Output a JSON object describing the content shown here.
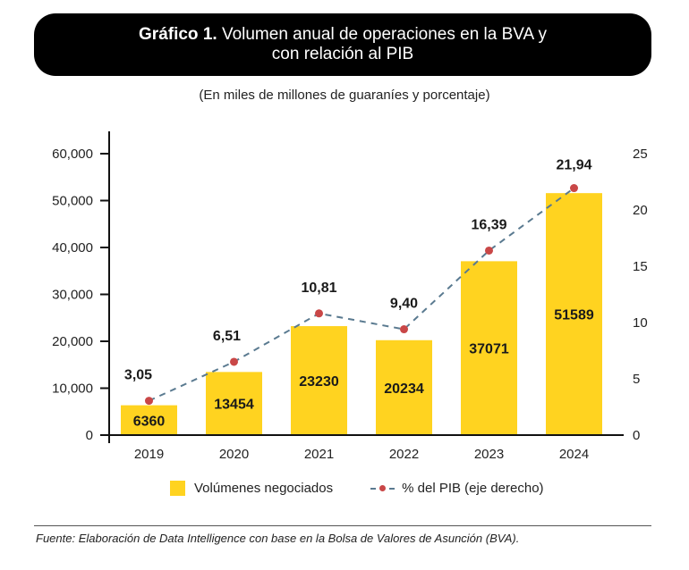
{
  "header": {
    "title_bold": "Gráfico 1.",
    "title_rest_line1": " Volumen anual de operaciones en la BVA y",
    "title_line2": "con relación al PIB",
    "subtitle": "(En miles de millones de guaraníes y porcentaje)"
  },
  "legend": {
    "bars_label": "Volúmenes negociados",
    "line_label": "% del PIB (eje derecho)"
  },
  "footer": {
    "source": "Fuente: Elaboración de Data Intelligence con base en la Bolsa de Valores de Asunción (BVA)."
  },
  "colors": {
    "bar": "#FFD320",
    "line": "#5A7A90",
    "point": "#C94747",
    "axis": "#111111"
  },
  "chart_data": {
    "type": "bar",
    "title": "Gráfico 1. Volumen anual de operaciones en la BVA y con relación al PIB",
    "subtitle": "(En miles de millones de guaraníes y porcentaje)",
    "categories": [
      "2019",
      "2020",
      "2021",
      "2022",
      "2023",
      "2024"
    ],
    "series": [
      {
        "name": "Volúmenes negociados",
        "type": "bar",
        "axis": "left",
        "values": [
          6360,
          13454,
          23230,
          20234,
          37071,
          51589
        ],
        "labels": [
          "6360",
          "13454",
          "23230",
          "20234",
          "37071",
          "51589"
        ]
      },
      {
        "name": "% del PIB (eje derecho)",
        "type": "line",
        "style": "dashed-with-markers",
        "axis": "right",
        "values": [
          3.05,
          6.51,
          10.81,
          9.4,
          16.39,
          21.94
        ],
        "labels": [
          "3,05",
          "6,51",
          "10,81",
          "9,40",
          "16,39",
          "21,94"
        ]
      }
    ],
    "left_axis": {
      "ylim": [
        0,
        60000
      ],
      "ticks": [
        0,
        10000,
        20000,
        30000,
        40000,
        50000,
        60000
      ],
      "tick_labels": [
        "0",
        "10,000",
        "20,000",
        "30,000",
        "40,000",
        "50,000",
        "60,000"
      ]
    },
    "right_axis": {
      "ylim": [
        0,
        25
      ],
      "ticks": [
        0,
        5,
        10,
        15,
        20,
        25
      ],
      "tick_labels": [
        "0",
        "5",
        "10",
        "15",
        "20",
        "25"
      ]
    },
    "xlabel": "",
    "ylabel": "",
    "grid": false,
    "legend_position": "bottom"
  }
}
